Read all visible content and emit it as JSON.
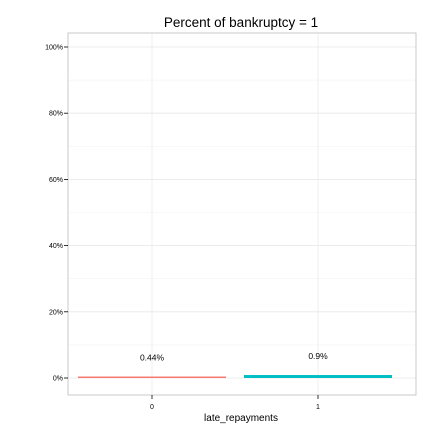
{
  "chart_data": {
    "type": "bar",
    "title": "Percent of bankruptcy = 1",
    "xlabel": "late_repayments",
    "ylabel": "",
    "categories": [
      "0",
      "1"
    ],
    "values": [
      0.44,
      0.9
    ],
    "data_labels": [
      "0.44%",
      "0.9%"
    ],
    "colors": [
      "#F8766D",
      "#00BFC4"
    ],
    "ylim": [
      0,
      100
    ],
    "yticks": [
      0,
      20,
      40,
      60,
      80,
      100
    ],
    "ytick_labels": [
      "0%",
      "20%",
      "40%",
      "60%",
      "80%",
      "100%"
    ],
    "grid": true,
    "legend": "none"
  }
}
